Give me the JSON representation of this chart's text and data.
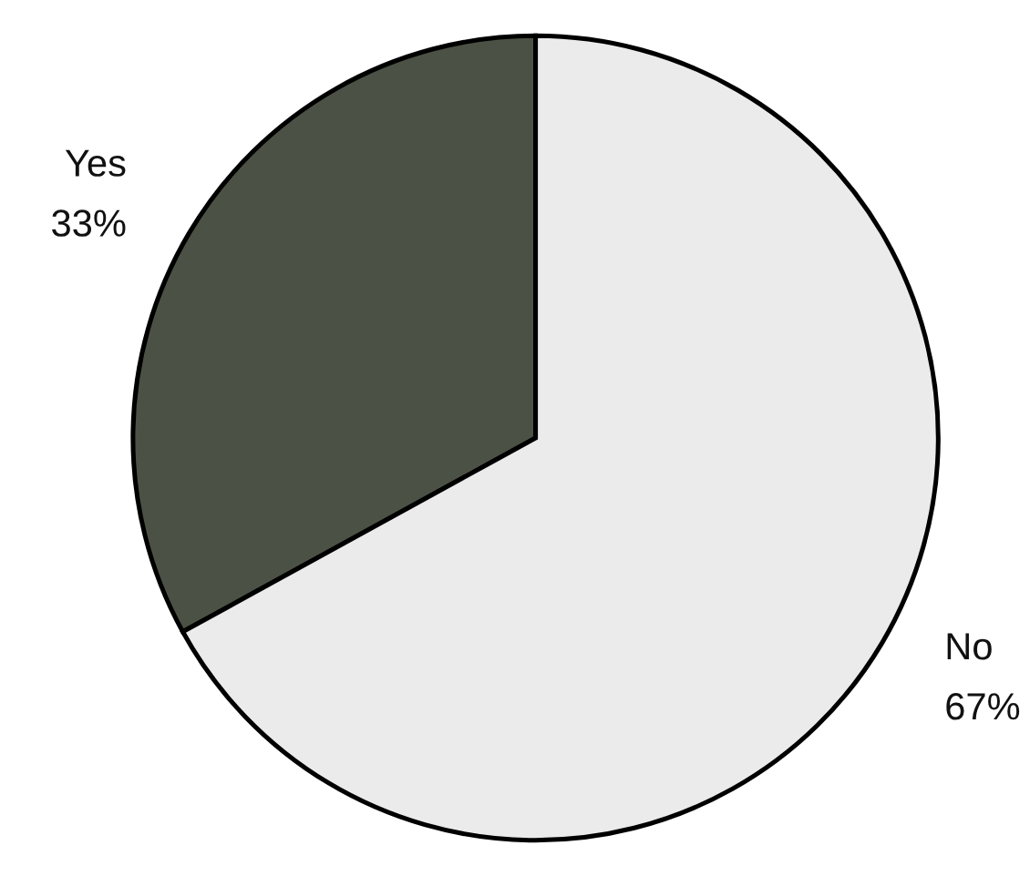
{
  "chart_data": {
    "type": "pie",
    "categories": [
      "Yes",
      "No"
    ],
    "values": [
      33,
      67
    ],
    "colors": [
      "#4b5245",
      "#ebebeb"
    ],
    "value_labels": [
      "33%",
      "67%"
    ]
  }
}
